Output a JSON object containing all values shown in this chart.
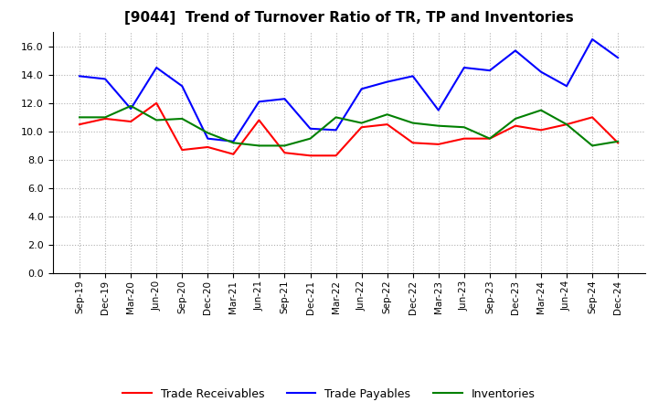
{
  "title": "[9044]  Trend of Turnover Ratio of TR, TP and Inventories",
  "x_labels": [
    "Sep-19",
    "Dec-19",
    "Mar-20",
    "Jun-20",
    "Sep-20",
    "Dec-20",
    "Mar-21",
    "Jun-21",
    "Sep-21",
    "Dec-21",
    "Mar-22",
    "Jun-22",
    "Sep-22",
    "Dec-22",
    "Mar-23",
    "Jun-23",
    "Sep-23",
    "Dec-23",
    "Mar-24",
    "Jun-24",
    "Sep-24",
    "Dec-24"
  ],
  "trade_receivables": [
    10.5,
    10.9,
    10.7,
    12.0,
    8.7,
    8.9,
    8.4,
    10.8,
    8.5,
    8.3,
    8.3,
    10.3,
    10.5,
    9.2,
    9.1,
    9.5,
    9.5,
    10.4,
    10.1,
    10.5,
    11.0,
    9.2
  ],
  "trade_payables": [
    13.9,
    13.7,
    11.6,
    14.5,
    13.2,
    9.5,
    9.3,
    12.1,
    12.3,
    10.2,
    10.1,
    13.0,
    13.5,
    13.9,
    11.5,
    14.5,
    14.3,
    15.7,
    14.2,
    13.2,
    16.5,
    15.2
  ],
  "inventories": [
    11.0,
    11.0,
    11.8,
    10.8,
    10.9,
    9.9,
    9.2,
    9.0,
    9.0,
    9.5,
    11.0,
    10.6,
    11.2,
    10.6,
    10.4,
    10.3,
    9.5,
    10.9,
    11.5,
    10.5,
    9.0,
    9.3
  ],
  "tr_color": "#ff0000",
  "tp_color": "#0000ff",
  "inv_color": "#008000",
  "ylim": [
    0.0,
    17.0
  ],
  "yticks": [
    0.0,
    2.0,
    4.0,
    6.0,
    8.0,
    10.0,
    12.0,
    14.0,
    16.0
  ],
  "background_color": "#ffffff",
  "grid_color": "#b0b0b0",
  "legend_tr": "Trade Receivables",
  "legend_tp": "Trade Payables",
  "legend_inv": "Inventories"
}
